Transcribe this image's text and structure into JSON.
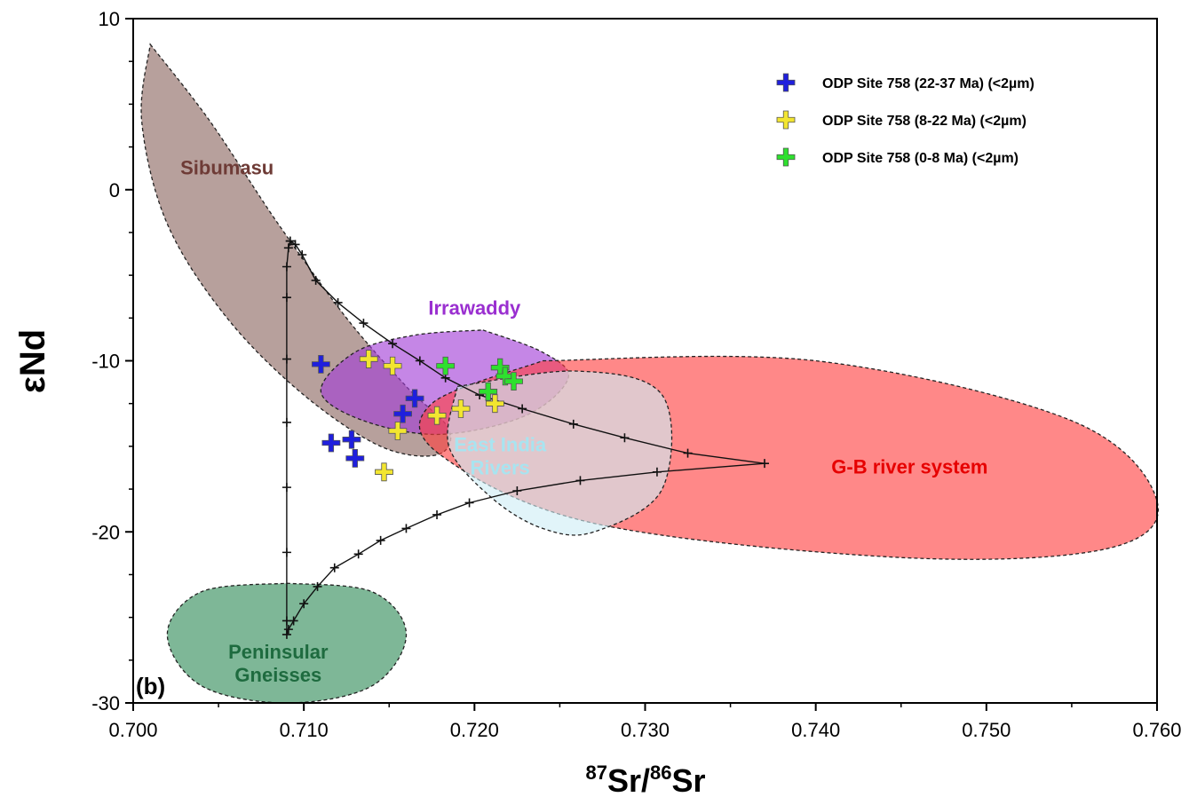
{
  "chart_data": {
    "type": "scatter",
    "panel_label": "(b)",
    "xlabel": {
      "sup1": "87",
      "base1": "Sr/",
      "sup2": "86",
      "base2": "Sr"
    },
    "ylabel": {
      "symbol": "ε",
      "text": "Nd"
    },
    "xlim": [
      0.7,
      0.76
    ],
    "ylim": [
      -30,
      10
    ],
    "x_ticks": [
      0.7,
      0.71,
      0.72,
      0.73,
      0.74,
      0.75,
      0.76
    ],
    "x_tick_labels": [
      "0.700",
      "0.710",
      "0.720",
      "0.730",
      "0.740",
      "0.750",
      "0.760"
    ],
    "y_ticks": [
      10,
      0,
      -10,
      -20,
      -30
    ],
    "y_tick_labels": [
      "10",
      "0",
      "-10",
      "-20",
      "-30"
    ],
    "regions": [
      {
        "name": "Sibumasu",
        "color": "#8b6560",
        "label_color": "#6e3b36",
        "label_at": [
          0.7055,
          0.9
        ],
        "outline": [
          [
            0.701,
            8.5
          ],
          [
            0.7045,
            4
          ],
          [
            0.7085,
            -2
          ],
          [
            0.7125,
            -7.5
          ],
          [
            0.716,
            -11.5
          ],
          [
            0.7185,
            -14
          ],
          [
            0.7178,
            -15.5
          ],
          [
            0.7145,
            -15
          ],
          [
            0.71,
            -12
          ],
          [
            0.7055,
            -7.5
          ],
          [
            0.702,
            -2
          ],
          [
            0.7005,
            4
          ],
          [
            0.701,
            8.5
          ]
        ]
      },
      {
        "name": "Irrawaddy",
        "color": "#a13bd6",
        "label_color": "#9a2fd0",
        "label_at": [
          0.72,
          -7.3
        ],
        "outline": [
          [
            0.7205,
            -8.2
          ],
          [
            0.724,
            -9.5
          ],
          [
            0.7255,
            -11
          ],
          [
            0.723,
            -13.2
          ],
          [
            0.718,
            -14.3
          ],
          [
            0.7135,
            -13.5
          ],
          [
            0.711,
            -11.8
          ],
          [
            0.713,
            -9.5
          ],
          [
            0.7165,
            -8.5
          ],
          [
            0.7205,
            -8.2
          ]
        ]
      },
      {
        "name": "G-B river system",
        "color": "#ff3f3f",
        "label_color": "#e60000",
        "label_at": [
          0.7455,
          -16.6
        ],
        "outline": [
          [
            0.724,
            -10
          ],
          [
            0.74,
            -10
          ],
          [
            0.755,
            -13.5
          ],
          [
            0.76,
            -18.2
          ],
          [
            0.757,
            -21
          ],
          [
            0.745,
            -21.5
          ],
          [
            0.727,
            -19.5
          ],
          [
            0.718,
            -15.5
          ],
          [
            0.7175,
            -12.5
          ],
          [
            0.724,
            -10
          ]
        ]
      },
      {
        "name": "East India",
        "name_line2": "Rivers",
        "color": "#cfeef5",
        "label_color": "#a8e4f0",
        "label_at": [
          0.7215,
          -15.3
        ],
        "outline": [
          [
            0.719,
            -11.5
          ],
          [
            0.726,
            -10.6
          ],
          [
            0.731,
            -12
          ],
          [
            0.731,
            -17.5
          ],
          [
            0.727,
            -20
          ],
          [
            0.724,
            -19.8
          ],
          [
            0.721,
            -18
          ],
          [
            0.7185,
            -15
          ],
          [
            0.719,
            -11.5
          ]
        ]
      },
      {
        "name": "Peninsular",
        "name_line2": "Gneisses",
        "color": "#2e8b57",
        "label_color": "#1e6b3f",
        "label_at": [
          0.7085,
          -27.4
        ],
        "outline": [
          [
            0.709,
            -23
          ],
          [
            0.714,
            -23.5
          ],
          [
            0.716,
            -26
          ],
          [
            0.714,
            -29
          ],
          [
            0.709,
            -30
          ],
          [
            0.704,
            -29
          ],
          [
            0.702,
            -26
          ],
          [
            0.704,
            -23.5
          ],
          [
            0.709,
            -23
          ]
        ]
      }
    ],
    "mixing_curve": {
      "x": [
        0.7092,
        0.7095,
        0.7099,
        0.7107,
        0.712,
        0.7135,
        0.7152,
        0.7168,
        0.7183,
        0.7203,
        0.7228,
        0.7258,
        0.7288,
        0.7325,
        0.737,
        0.7307,
        0.7262,
        0.7225,
        0.7197,
        0.7178,
        0.716,
        0.7145,
        0.7132,
        0.7118,
        0.7108,
        0.71,
        0.7094,
        0.7091,
        0.709,
        0.709,
        0.709,
        0.709,
        0.709,
        0.709,
        0.709,
        0.709,
        0.7091,
        0.7092
      ],
      "y": [
        -3,
        -3.2,
        -3.8,
        -5.3,
        -6.6,
        -7.8,
        -9,
        -10,
        -11,
        -12,
        -12.8,
        -13.7,
        -14.5,
        -15.4,
        -16,
        -16.5,
        -17,
        -17.6,
        -18.3,
        -19,
        -19.8,
        -20.5,
        -21.3,
        -22.1,
        -23.2,
        -24.2,
        -25.2,
        -25.7,
        -26,
        -25.2,
        -21.2,
        -17.4,
        -13.6,
        -9.9,
        -6.3,
        -4.5,
        -3.4,
        -3
      ]
    },
    "series": [
      {
        "name": "ODP Site 758 (22-37 Ma) (<2µm)",
        "color": "#1f1fdd",
        "x": [
          0.711,
          0.7116,
          0.7128,
          0.713,
          0.7158,
          0.7165
        ],
        "y": [
          -10.2,
          -14.8,
          -14.6,
          -15.7,
          -13.1,
          -12.2
        ]
      },
      {
        "name": "ODP Site 758 (8-22 Ma) (<2µm)",
        "color": "#f2e530",
        "x": [
          0.7138,
          0.7152,
          0.7155,
          0.7147,
          0.7178,
          0.7192,
          0.7212
        ],
        "y": [
          -9.9,
          -10.3,
          -14.1,
          -16.5,
          -13.2,
          -12.8,
          -12.5
        ]
      },
      {
        "name": "ODP Site 758 (0-8 Ma) (<2µm)",
        "color": "#2ee02e",
        "x": [
          0.7183,
          0.7215,
          0.7218,
          0.7223,
          0.7208
        ],
        "y": [
          -10.3,
          -10.4,
          -10.9,
          -11.2,
          -11.8
        ]
      }
    ],
    "legend_position": "top-right"
  }
}
